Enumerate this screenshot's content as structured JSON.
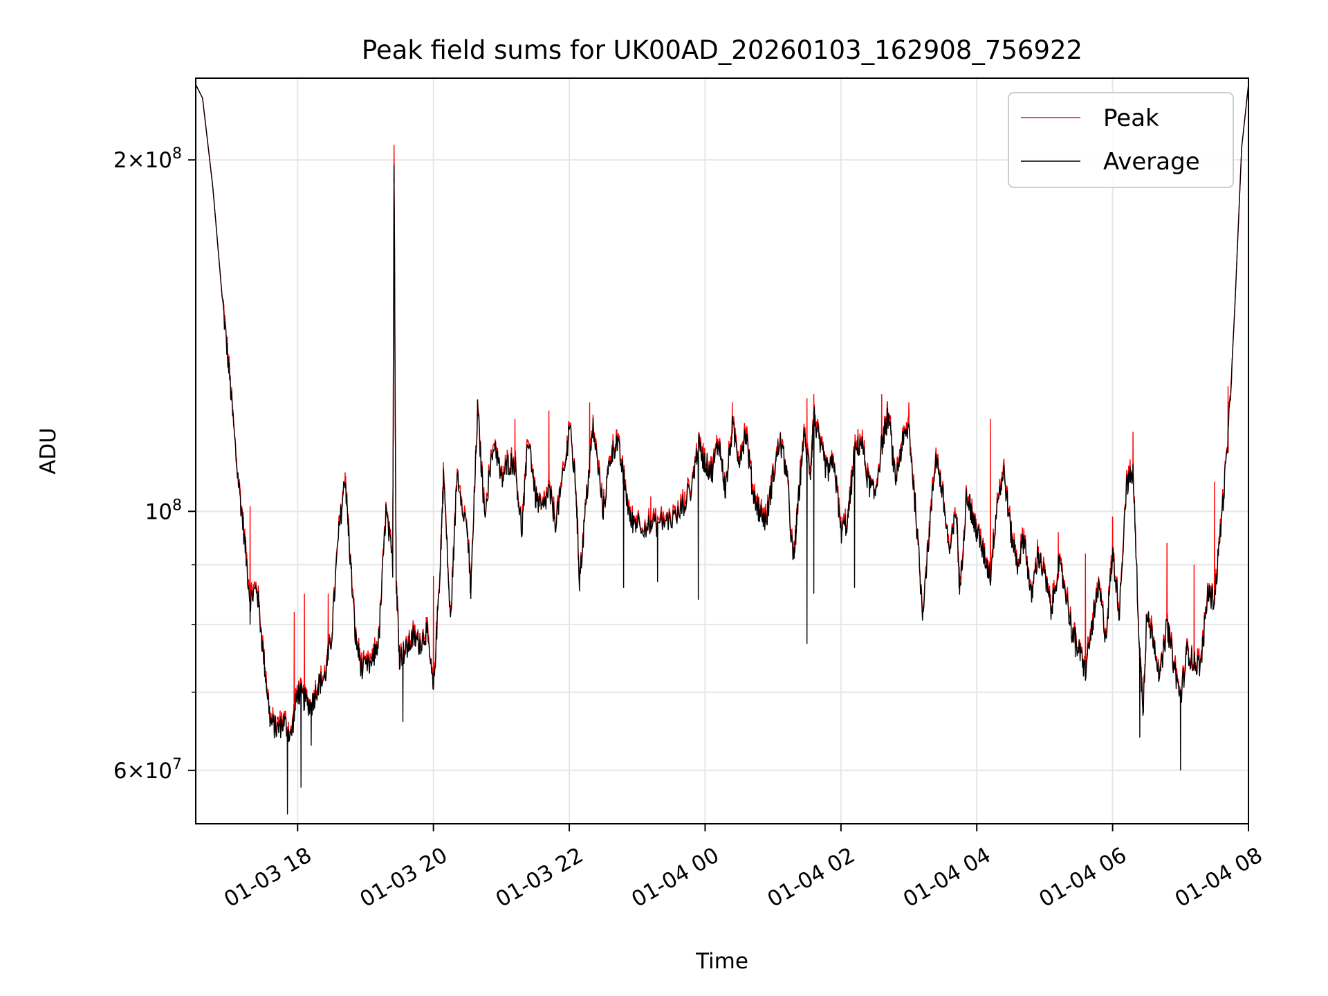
{
  "chart_data": {
    "type": "line",
    "title": "Peak field sums for UK00AD_20260103_162908_756922",
    "xlabel": "Time",
    "ylabel": "ADU",
    "yscale": "log",
    "ylim": [
      54000000,
      235000000
    ],
    "xlim_hours": [
      16.5,
      8.0
    ],
    "x_ticks": [
      {
        "hour": 18,
        "label": "01-03 18"
      },
      {
        "hour": 20,
        "label": "01-03 20"
      },
      {
        "hour": 22,
        "label": "01-03 22"
      },
      {
        "hour": 24,
        "label": "01-04 00"
      },
      {
        "hour": 26,
        "label": "01-04 02"
      },
      {
        "hour": 28,
        "label": "01-04 04"
      },
      {
        "hour": 30,
        "label": "01-04 06"
      },
      {
        "hour": 32,
        "label": "01-04 08"
      }
    ],
    "y_ticks": [
      {
        "value": 60000000,
        "base": "6",
        "exp": "7"
      },
      {
        "value": 100000000,
        "base": "",
        "exp": "8"
      },
      {
        "value": 200000000,
        "base": "2",
        "exp": "8"
      }
    ],
    "y_minor_ticks": [
      70000000,
      80000000,
      90000000
    ],
    "grid": true,
    "legend": {
      "position": "top-right",
      "entries": [
        {
          "name": "Peak",
          "color": "#ff0000"
        },
        {
          "name": "Average",
          "color": "#000000"
        }
      ]
    },
    "series": [
      {
        "name": "Average",
        "color": "#000000",
        "keypoints": [
          [
            16.5,
            232000000
          ],
          [
            16.6,
            226000000
          ],
          [
            16.75,
            190000000
          ],
          [
            16.9,
            150000000
          ],
          [
            17.0,
            130000000
          ],
          [
            17.1,
            110000000
          ],
          [
            17.2,
            97000000
          ],
          [
            17.3,
            84000000
          ],
          [
            17.4,
            86000000
          ],
          [
            17.5,
            75000000
          ],
          [
            17.6,
            66000000
          ],
          [
            17.7,
            65000000
          ],
          [
            17.8,
            66000000
          ],
          [
            17.9,
            64000000
          ],
          [
            18.0,
            70000000
          ],
          [
            18.1,
            69000000
          ],
          [
            18.2,
            68000000
          ],
          [
            18.3,
            71000000
          ],
          [
            18.4,
            72000000
          ],
          [
            18.5,
            78000000
          ],
          [
            18.6,
            95000000
          ],
          [
            18.7,
            107000000
          ],
          [
            18.75,
            96000000
          ],
          [
            18.85,
            78000000
          ],
          [
            18.95,
            73000000
          ],
          [
            19.1,
            74000000
          ],
          [
            19.2,
            78000000
          ],
          [
            19.3,
            100000000
          ],
          [
            19.4,
            90000000
          ],
          [
            19.42,
            200000000
          ],
          [
            19.45,
            88000000
          ],
          [
            19.5,
            75000000
          ],
          [
            19.6,
            76000000
          ],
          [
            19.7,
            78000000
          ],
          [
            19.8,
            77000000
          ],
          [
            19.9,
            79000000
          ],
          [
            20.0,
            70000000
          ],
          [
            20.1,
            90000000
          ],
          [
            20.15,
            108000000
          ],
          [
            20.25,
            80000000
          ],
          [
            20.35,
            108000000
          ],
          [
            20.5,
            96000000
          ],
          [
            20.55,
            85000000
          ],
          [
            20.65,
            122000000
          ],
          [
            20.75,
            100000000
          ],
          [
            20.9,
            115000000
          ],
          [
            21.0,
            106000000
          ],
          [
            21.1,
            110000000
          ],
          [
            21.2,
            110000000
          ],
          [
            21.3,
            96000000
          ],
          [
            21.4,
            116000000
          ],
          [
            21.5,
            103000000
          ],
          [
            21.6,
            100000000
          ],
          [
            21.7,
            104000000
          ],
          [
            21.8,
            98000000
          ],
          [
            21.95,
            110000000
          ],
          [
            22.0,
            119000000
          ],
          [
            22.1,
            104000000
          ],
          [
            22.15,
            87000000
          ],
          [
            22.25,
            102000000
          ],
          [
            22.35,
            118000000
          ],
          [
            22.5,
            100000000
          ],
          [
            22.6,
            111000000
          ],
          [
            22.7,
            115000000
          ],
          [
            22.8,
            107000000
          ],
          [
            22.9,
            98000000
          ],
          [
            23.0,
            98000000
          ],
          [
            23.2,
            97000000
          ],
          [
            23.4,
            98000000
          ],
          [
            23.6,
            99000000
          ],
          [
            23.8,
            105000000
          ],
          [
            23.9,
            114000000
          ],
          [
            24.0,
            110000000
          ],
          [
            24.1,
            108000000
          ],
          [
            24.2,
            115000000
          ],
          [
            24.3,
            104000000
          ],
          [
            24.4,
            118000000
          ],
          [
            24.5,
            111000000
          ],
          [
            24.6,
            117000000
          ],
          [
            24.7,
            104000000
          ],
          [
            24.8,
            100000000
          ],
          [
            24.9,
            98000000
          ],
          [
            25.0,
            107000000
          ],
          [
            25.1,
            115000000
          ],
          [
            25.2,
            108000000
          ],
          [
            25.3,
            90000000
          ],
          [
            25.35,
            98000000
          ],
          [
            25.45,
            116000000
          ],
          [
            25.55,
            108000000
          ],
          [
            25.6,
            121000000
          ],
          [
            25.7,
            113000000
          ],
          [
            25.8,
            108000000
          ],
          [
            25.9,
            110000000
          ],
          [
            26.0,
            96000000
          ],
          [
            26.1,
            98000000
          ],
          [
            26.2,
            112000000
          ],
          [
            26.3,
            115000000
          ],
          [
            26.4,
            106000000
          ],
          [
            26.5,
            103000000
          ],
          [
            26.6,
            114000000
          ],
          [
            26.7,
            121000000
          ],
          [
            26.8,
            106000000
          ],
          [
            26.9,
            114000000
          ],
          [
            27.0,
            118000000
          ],
          [
            27.1,
            100000000
          ],
          [
            27.2,
            82000000
          ],
          [
            27.3,
            96000000
          ],
          [
            27.4,
            112000000
          ],
          [
            27.5,
            103000000
          ],
          [
            27.6,
            92000000
          ],
          [
            27.7,
            100000000
          ],
          [
            27.75,
            85000000
          ],
          [
            27.85,
            104000000
          ],
          [
            27.95,
            98000000
          ],
          [
            28.0,
            96000000
          ],
          [
            28.1,
            92000000
          ],
          [
            28.2,
            88000000
          ],
          [
            28.3,
            102000000
          ],
          [
            28.4,
            108000000
          ],
          [
            28.5,
            96000000
          ],
          [
            28.6,
            90000000
          ],
          [
            28.7,
            95000000
          ],
          [
            28.8,
            84000000
          ],
          [
            28.9,
            92000000
          ],
          [
            29.0,
            88000000
          ],
          [
            29.1,
            82000000
          ],
          [
            29.2,
            90000000
          ],
          [
            29.3,
            86000000
          ],
          [
            29.4,
            79000000
          ],
          [
            29.5,
            76000000
          ],
          [
            29.6,
            73000000
          ],
          [
            29.7,
            80000000
          ],
          [
            29.8,
            86000000
          ],
          [
            29.9,
            78000000
          ],
          [
            30.0,
            92000000
          ],
          [
            30.1,
            82000000
          ],
          [
            30.2,
            105000000
          ],
          [
            30.3,
            108000000
          ],
          [
            30.4,
            75000000
          ],
          [
            30.45,
            68000000
          ],
          [
            30.5,
            81000000
          ],
          [
            30.6,
            78000000
          ],
          [
            30.7,
            72000000
          ],
          [
            30.8,
            80000000
          ],
          [
            30.9,
            74000000
          ],
          [
            31.0,
            69000000
          ],
          [
            31.1,
            76000000
          ],
          [
            31.2,
            74000000
          ],
          [
            31.3,
            74000000
          ],
          [
            31.4,
            85000000
          ],
          [
            31.5,
            84000000
          ],
          [
            31.6,
            98000000
          ],
          [
            31.7,
            115000000
          ],
          [
            31.8,
            150000000
          ],
          [
            31.9,
            205000000
          ],
          [
            32.0,
            232000000
          ]
        ],
        "spikes": [
          [
            17.85,
            55000000
          ],
          [
            18.05,
            58000000
          ],
          [
            18.2,
            63000000
          ],
          [
            19.55,
            66000000
          ],
          [
            22.8,
            86000000
          ],
          [
            23.3,
            87000000
          ],
          [
            23.9,
            84000000
          ],
          [
            25.5,
            77000000
          ],
          [
            25.6,
            85000000
          ],
          [
            26.2,
            86000000
          ],
          [
            29.45,
            75000000
          ],
          [
            30.4,
            64000000
          ],
          [
            31.0,
            60000000
          ],
          [
            17.3,
            80000000
          ]
        ]
      },
      {
        "name": "Peak",
        "color": "#ff0000",
        "spikes": [
          [
            17.3,
            101000000
          ],
          [
            17.95,
            82000000
          ],
          [
            18.1,
            85000000
          ],
          [
            18.45,
            85000000
          ],
          [
            18.7,
            108000000
          ],
          [
            19.42,
            206000000
          ],
          [
            20.0,
            88000000
          ],
          [
            21.2,
            120000000
          ],
          [
            21.7,
            122000000
          ],
          [
            22.3,
            124000000
          ],
          [
            23.2,
            103000000
          ],
          [
            23.7,
            104000000
          ],
          [
            24.4,
            124000000
          ],
          [
            25.5,
            125000000
          ],
          [
            25.6,
            126000000
          ],
          [
            26.6,
            126000000
          ],
          [
            27.0,
            124000000
          ],
          [
            28.2,
            120000000
          ],
          [
            29.2,
            96000000
          ],
          [
            29.6,
            92000000
          ],
          [
            30.0,
            99000000
          ],
          [
            30.3,
            117000000
          ],
          [
            30.8,
            94000000
          ],
          [
            31.2,
            90000000
          ],
          [
            31.5,
            106000000
          ],
          [
            31.7,
            128000000
          ]
        ]
      }
    ]
  }
}
